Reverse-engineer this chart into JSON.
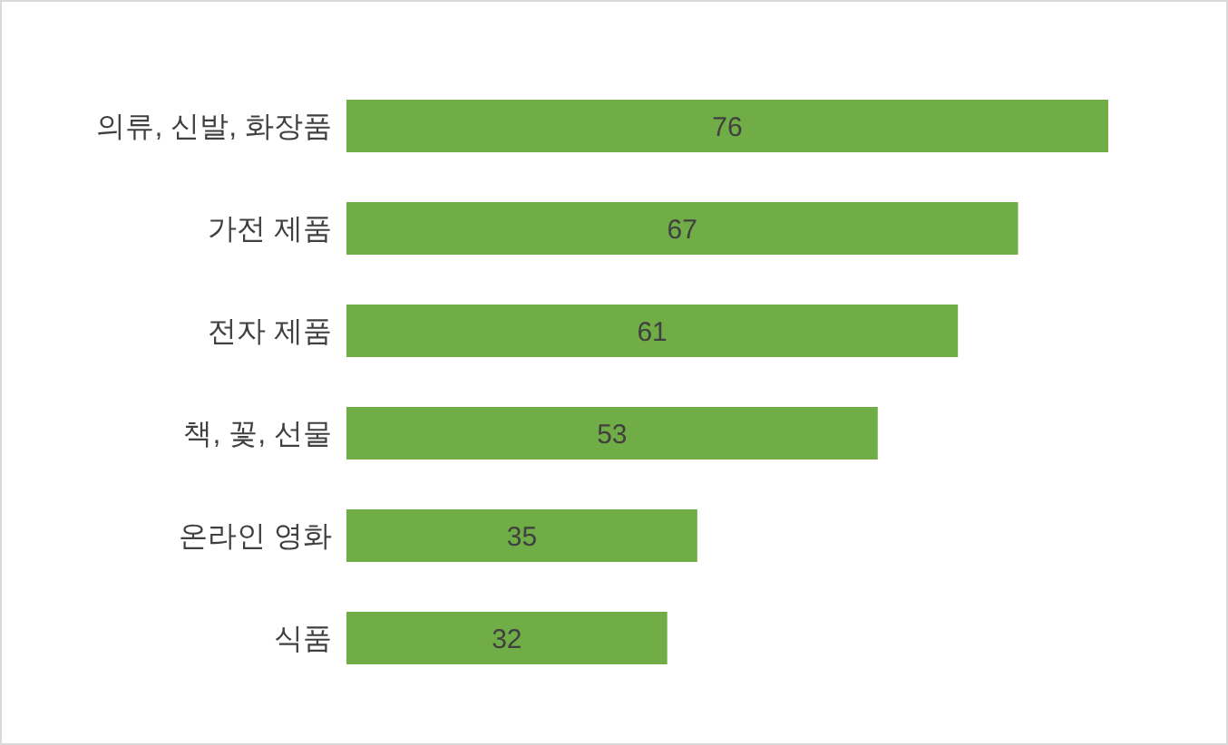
{
  "chart_data": {
    "type": "bar",
    "orientation": "horizontal",
    "categories": [
      "의류, 신발, 화장품",
      "가전 제품",
      "전자 제품",
      "책, 꽃, 선물",
      "온라인 영화",
      "식품"
    ],
    "values": [
      76,
      67,
      61,
      53,
      35,
      32
    ],
    "color": "#70ad47",
    "data_labels": true,
    "grid": false,
    "legend": false
  }
}
